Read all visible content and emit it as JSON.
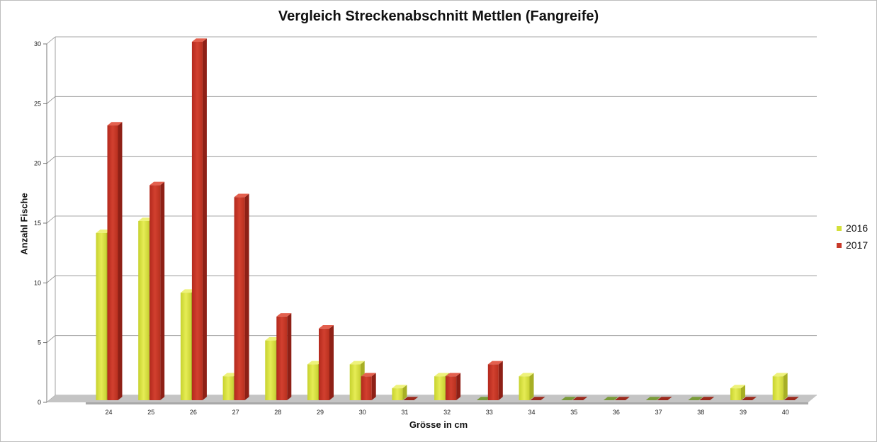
{
  "chart_data": {
    "type": "bar",
    "title": "Vergleich Streckenabschnitt Mettlen (Fangreife)",
    "xlabel": "Grösse in cm",
    "ylabel": "Anzahl Fische",
    "categories": [
      "24",
      "25",
      "26",
      "27",
      "28",
      "29",
      "30",
      "31",
      "32",
      "33",
      "34",
      "35",
      "36",
      "37",
      "38",
      "39",
      "40"
    ],
    "series": [
      {
        "name": "2016",
        "values": [
          14,
          15,
          9,
          2,
          5,
          3,
          3,
          1,
          2,
          0,
          2,
          0,
          0,
          0,
          0,
          1,
          2
        ],
        "color": "#d4e03a"
      },
      {
        "name": "2017",
        "values": [
          23,
          18,
          30,
          17,
          7,
          6,
          2,
          0,
          2,
          3,
          0,
          0,
          0,
          0,
          0,
          0,
          0
        ],
        "color": "#c83a2a"
      }
    ],
    "ylim": [
      0,
      30
    ],
    "yticks": [
      0,
      5,
      10,
      15,
      20,
      25,
      30
    ],
    "grid": true,
    "legend": "right",
    "style": "3d-bar"
  }
}
